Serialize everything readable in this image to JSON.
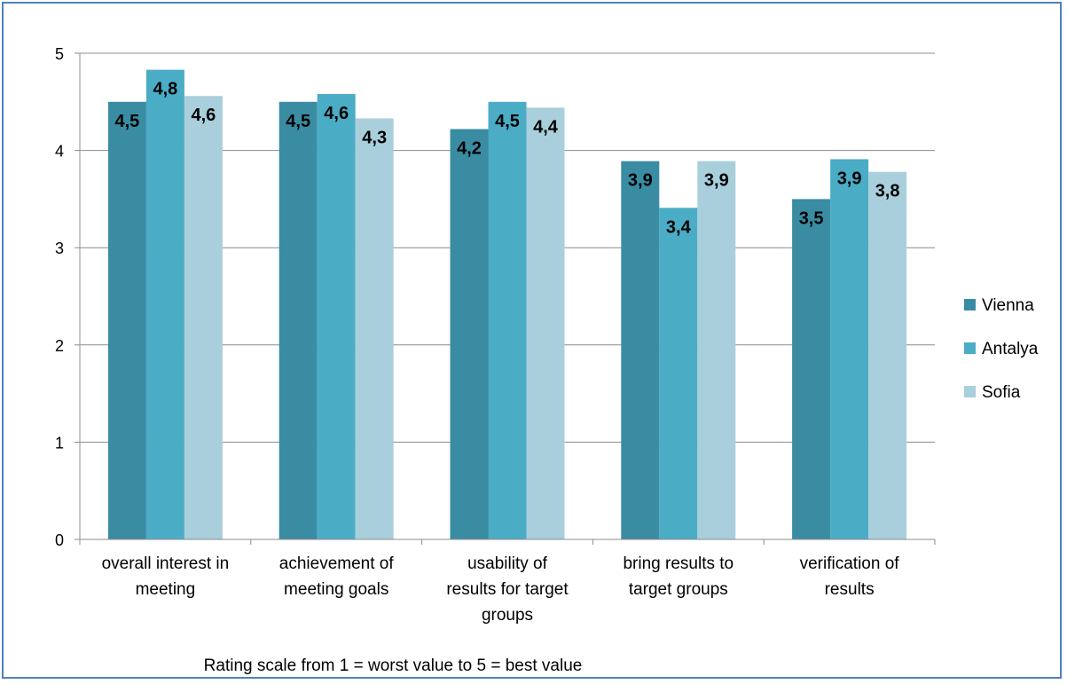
{
  "chart_data": {
    "type": "bar",
    "title": "",
    "ylabel": "",
    "xlabel": "Rating scale from 1 = worst value to 5 = best value",
    "ylim": [
      0,
      5
    ],
    "yticks": [
      0,
      1,
      2,
      3,
      4,
      5
    ],
    "grid": true,
    "legend_position": "right",
    "categories": [
      "overall interest in meeting",
      "achievement of meeting goals",
      "usability of results for target groups",
      "bring results to target groups",
      "verification of results"
    ],
    "category_lines": [
      [
        "overall interest in",
        "meeting"
      ],
      [
        "achievement of",
        "meeting goals"
      ],
      [
        "usability of",
        "results for target",
        "groups"
      ],
      [
        "bring results to",
        "target groups"
      ],
      [
        "verification of",
        "results"
      ]
    ],
    "series": [
      {
        "name": "Vienna",
        "color": "#3a8ca3",
        "values": [
          4.5,
          4.5,
          4.22,
          3.89,
          3.5
        ],
        "labels": [
          "4,5",
          "4,5",
          "4,2",
          "3,9",
          "3,5"
        ]
      },
      {
        "name": "Antalya",
        "color": "#4bacc6",
        "values": [
          4.83,
          4.58,
          4.5,
          3.41,
          3.91
        ],
        "labels": [
          "4,8",
          "4,6",
          "4,5",
          "3,4",
          "3,9"
        ]
      },
      {
        "name": "Sofia",
        "color": "#a9cfdd",
        "values": [
          4.56,
          4.33,
          4.44,
          3.89,
          3.78
        ],
        "labels": [
          "4,6",
          "4,3",
          "4,4",
          "3,9",
          "3,8"
        ]
      }
    ]
  }
}
